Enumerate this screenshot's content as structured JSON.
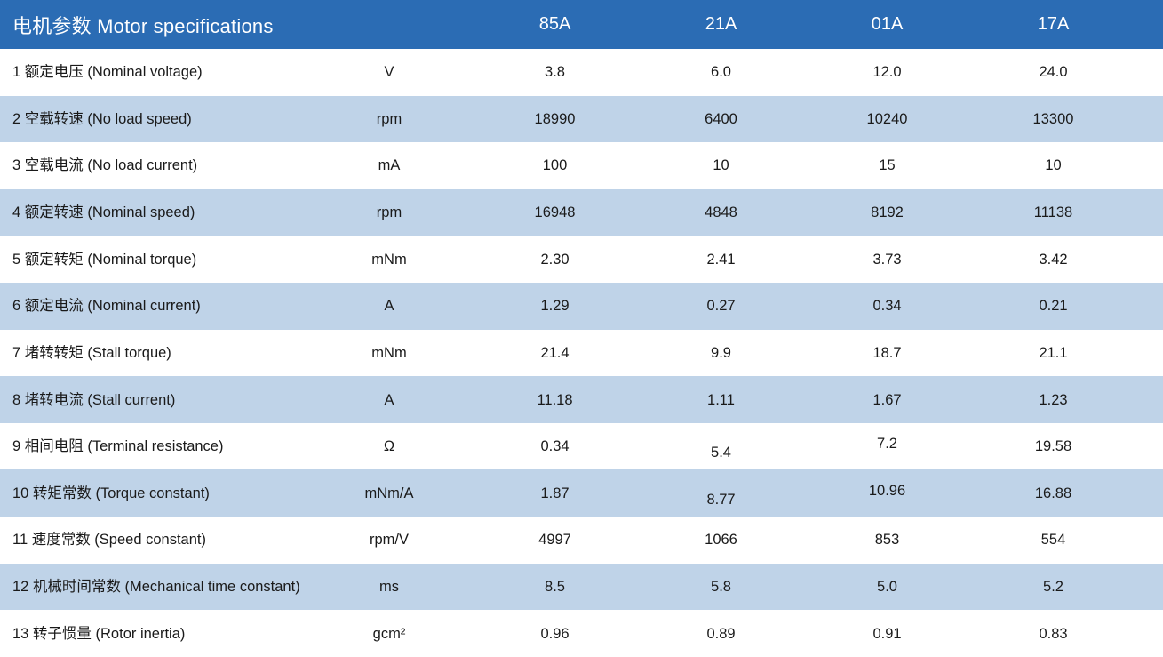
{
  "table": {
    "title": "电机参数 Motor specifications",
    "columns": [
      "85A",
      "21A",
      "01A",
      "17A"
    ],
    "rows": [
      {
        "label": "1 额定电压 (Nominal voltage)",
        "unit": "V",
        "values": [
          "3.8",
          "6.0",
          "12.0",
          "24.0"
        ]
      },
      {
        "label": "2 空载转速 (No load speed)",
        "unit": "rpm",
        "values": [
          "18990",
          "6400",
          "10240",
          "13300"
        ]
      },
      {
        "label": "3 空载电流 (No load current)",
        "unit": "mA",
        "values": [
          "100",
          "10",
          "15",
          "10"
        ]
      },
      {
        "label": "4 额定转速 (Nominal speed)",
        "unit": "rpm",
        "values": [
          "16948",
          "4848",
          "8192",
          "11138"
        ]
      },
      {
        "label": "5 额定转矩 (Nominal torque)",
        "unit": "mNm",
        "values": [
          "2.30",
          "2.41",
          "3.73",
          "3.42"
        ]
      },
      {
        "label": "6 额定电流 (Nominal current)",
        "unit": "A",
        "values": [
          "1.29",
          "0.27",
          "0.34",
          "0.21"
        ]
      },
      {
        "label": "7 堵转转矩 (Stall torque)",
        "unit": "mNm",
        "values": [
          "21.4",
          "9.9",
          "18.7",
          "21.1"
        ]
      },
      {
        "label": "8 堵转电流 (Stall current)",
        "unit": "A",
        "values": [
          "11.18",
          "1.11",
          "1.67",
          "1.23"
        ]
      },
      {
        "label": "9 相间电阻 (Terminal resistance)",
        "unit": "Ω",
        "values": [
          "0.34",
          "5.4",
          "7.2",
          "19.58"
        ]
      },
      {
        "label": "10 转矩常数 (Torque constant)",
        "unit": "mNm/A",
        "values": [
          "1.87",
          "8.77",
          "10.96",
          "16.88"
        ]
      },
      {
        "label": "11 速度常数 (Speed constant)",
        "unit": "rpm/V",
        "values": [
          "4997",
          "1066",
          "853",
          "554"
        ]
      },
      {
        "label": "12 机械时间常数 (Mechanical time constant)",
        "unit": "ms",
        "values": [
          "8.5",
          "5.8",
          "5.0",
          "5.2"
        ]
      },
      {
        "label": "13 转子惯量 (Rotor inertia)",
        "unit": "gcm²",
        "values": [
          "0.96",
          "0.89",
          "0.91",
          "0.83"
        ]
      }
    ],
    "colors": {
      "header_bg": "#2B6CB4",
      "header_text": "#FFFFFF",
      "row_alt_bg": "#BFD3E8",
      "body_text": "#1A1A1A"
    }
  }
}
